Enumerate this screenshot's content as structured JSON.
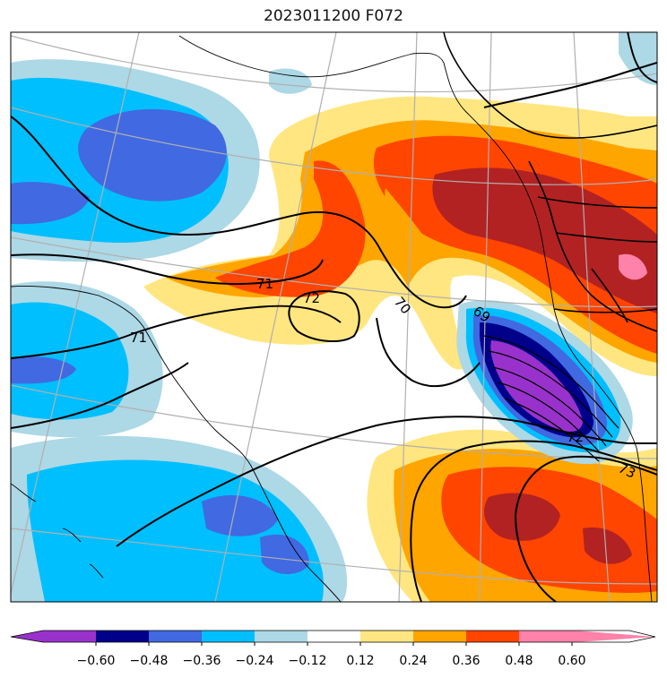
{
  "title": "2023011200 F072",
  "colorbar": {
    "colors": [
      "#9932cc",
      "#00008b",
      "#4169e1",
      "#00bfff",
      "#add8e6",
      "#ffffff",
      "#ffe680",
      "#ffa500",
      "#ff4500",
      "#b22222",
      "#ff82ab"
    ],
    "ticks": [
      "−0.60",
      "−0.48",
      "−0.36",
      "−0.24",
      "−0.12",
      "0.12",
      "0.24",
      "0.36",
      "0.48",
      "0.60"
    ]
  },
  "contour_labels": [
    "71",
    "72",
    "70",
    "69",
    "71",
    "72",
    "73"
  ]
}
